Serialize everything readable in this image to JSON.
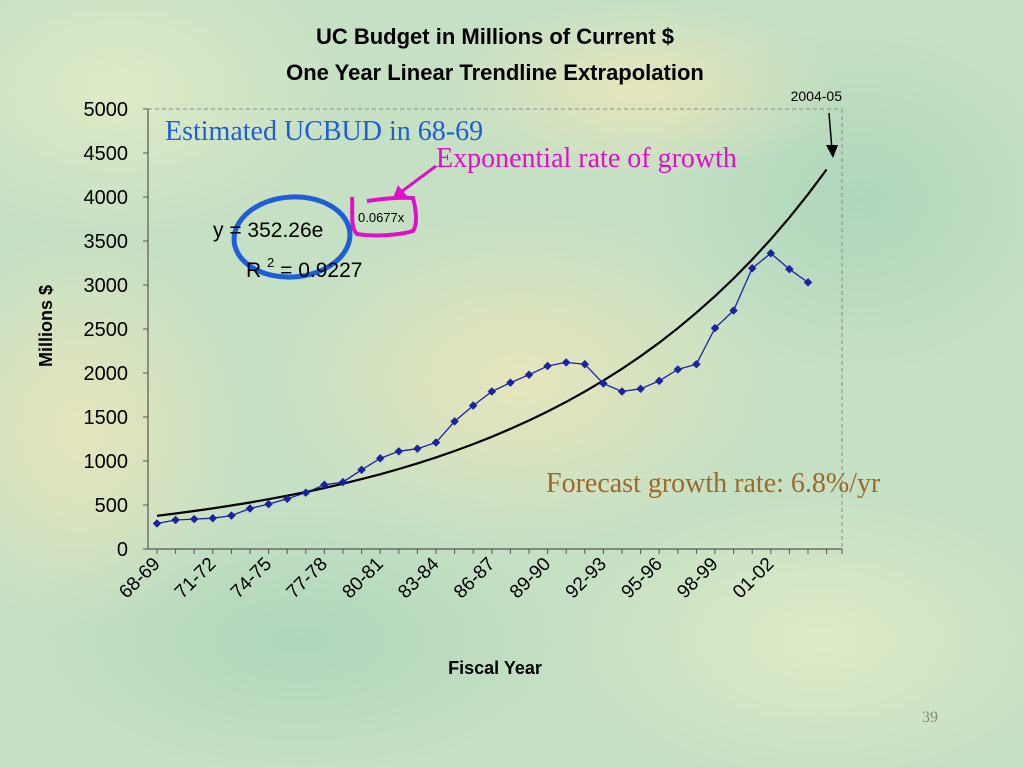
{
  "chart_data": {
    "type": "line",
    "title": "UC Budget in Millions of Current $",
    "subtitle": "One Year Linear Trendline Extrapolation",
    "xlabel": "Fiscal Year",
    "ylabel": "Millions $",
    "ylim": [
      0,
      5000
    ],
    "yticks": [
      0,
      500,
      1000,
      1500,
      2000,
      2500,
      3000,
      3500,
      4000,
      4500,
      5000
    ],
    "x_tick_labels": [
      "68-69",
      "71-72",
      "74-75",
      "77-78",
      "80-81",
      "83-84",
      "86-87",
      "89-90",
      "92-93",
      "95-96",
      "98-99",
      "01-02"
    ],
    "grid": false,
    "series": [
      {
        "values": [
          290,
          330,
          340,
          350,
          380,
          460,
          510,
          570,
          640,
          730,
          760,
          900,
          1030,
          1110,
          1140,
          1210,
          1450,
          1630,
          1790,
          1890,
          1980,
          2080,
          2120,
          2100,
          1880,
          1790,
          1820,
          1910,
          2040,
          2100,
          2510,
          2710,
          3190,
          3360,
          3180,
          3030
        ],
        "color": "#1a23a0",
        "marker": "diamond"
      },
      {
        "type": "trendline",
        "model": "exponential",
        "coefficient": 352.26,
        "rate": 0.0677,
        "equation": "y = 352.26e",
        "equation_exponent": "0.0677x",
        "r2_label": "R",
        "r2_sup": "2",
        "r2_value": " = 0.9227",
        "color": "#000000"
      }
    ],
    "annotations": {
      "extrapolation_end": "2004-05",
      "estimated": "Estimated UCBUD in 68-69",
      "growth_type": "Exponential rate of growth",
      "forecast": "Forecast growth rate: 6.8%/yr"
    }
  },
  "slide": {
    "page_number": "39"
  },
  "colors": {
    "data_series": "#1a23a0",
    "estimated_note": "#1f5fd6",
    "growth_note": "#e010c8",
    "forecast_note": "#9a6a2a"
  }
}
